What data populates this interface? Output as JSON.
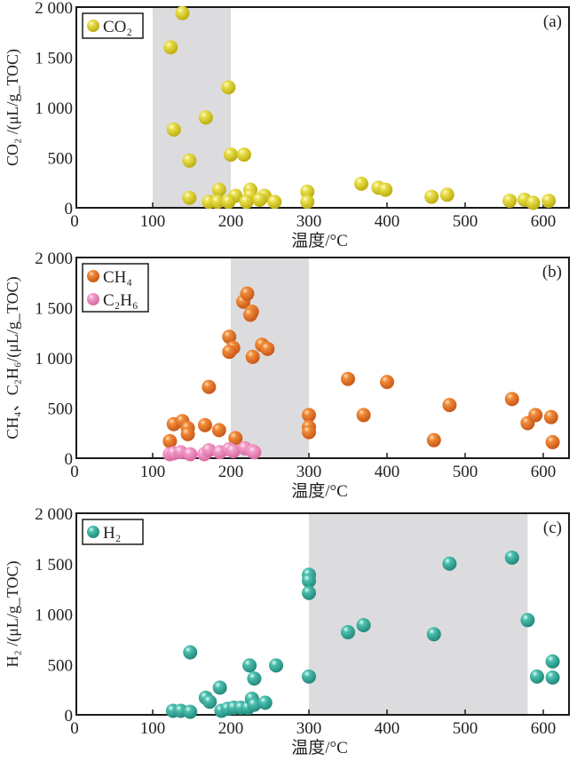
{
  "chart_data": [
    {
      "type": "scatter",
      "panel_label": "(a)",
      "xlabel": "温度/°C",
      "ylabel": "CO₂ /(μL/g_TOC)",
      "xlim": [
        0,
        640
      ],
      "ylim": [
        0,
        2000
      ],
      "xticks": [
        "0",
        "100",
        "200",
        "300",
        "400",
        "500",
        "600"
      ],
      "yticks": [
        "0",
        "500",
        "1 000",
        "1 500",
        "2 000"
      ],
      "shaded_range": [
        100,
        200
      ],
      "legend_position": "top-left",
      "series": [
        {
          "name": "CO₂",
          "color": "#d8cc2e",
          "points": [
            [
              138,
              1940
            ],
            [
              123,
              1600
            ],
            [
              197,
              1200
            ],
            [
              168,
              900
            ],
            [
              127,
              780
            ],
            [
              147,
              470
            ],
            [
              200,
              530
            ],
            [
              217,
              530
            ],
            [
              147,
              100
            ],
            [
              185,
              180
            ],
            [
              206,
              120
            ],
            [
              225,
              180
            ],
            [
              225,
              120
            ],
            [
              243,
              120
            ],
            [
              172,
              60
            ],
            [
              183,
              60
            ],
            [
              197,
              60
            ],
            [
              220,
              60
            ],
            [
              237,
              80
            ],
            [
              256,
              60
            ],
            [
              298,
              160
            ],
            [
              298,
              60
            ],
            [
              367,
              240
            ],
            [
              389,
              200
            ],
            [
              398,
              180
            ],
            [
              457,
              110
            ],
            [
              477,
              130
            ],
            [
              557,
              70
            ],
            [
              576,
              80
            ],
            [
              587,
              50
            ],
            [
              607,
              70
            ]
          ]
        }
      ]
    },
    {
      "type": "scatter",
      "panel_label": "(b)",
      "xlabel": "温度/°C",
      "ylabel": "CH₄、C₂H₆/(μL/g_TOC)",
      "xlim": [
        0,
        640
      ],
      "ylim": [
        0,
        2000
      ],
      "xticks": [
        "0",
        "100",
        "200",
        "300",
        "400",
        "500",
        "600"
      ],
      "yticks": [
        "0",
        "500",
        "1 000",
        "1 500",
        "2 000"
      ],
      "shaded_range": [
        200,
        300
      ],
      "legend_position": "top-left",
      "series": [
        {
          "name": "CH₄",
          "color": "#ee7a2a",
          "points": [
            [
              122,
              170
            ],
            [
              127,
              340
            ],
            [
              138,
              370
            ],
            [
              145,
              300
            ],
            [
              145,
              240
            ],
            [
              167,
              330
            ],
            [
              172,
              710
            ],
            [
              185,
              280
            ],
            [
              206,
              200
            ],
            [
              198,
              1210
            ],
            [
              203,
              1100
            ],
            [
              198,
              1060
            ],
            [
              216,
              1560
            ],
            [
              221,
              1640
            ],
            [
              227,
              1460
            ],
            [
              225,
              1430
            ],
            [
              228,
              1010
            ],
            [
              240,
              1130
            ],
            [
              247,
              1090
            ],
            [
              300,
              430
            ],
            [
              300,
              310
            ],
            [
              300,
              260
            ],
            [
              350,
              790
            ],
            [
              370,
              430
            ],
            [
              400,
              760
            ],
            [
              460,
              180
            ],
            [
              480,
              530
            ],
            [
              560,
              590
            ],
            [
              580,
              350
            ],
            [
              590,
              430
            ],
            [
              610,
              410
            ],
            [
              612,
              160
            ]
          ]
        },
        {
          "name": "C₂H₆",
          "color": "#ef8fc0",
          "points": [
            [
              122,
              40
            ],
            [
              127,
              50
            ],
            [
              136,
              60
            ],
            [
              148,
              40
            ],
            [
              166,
              40
            ],
            [
              172,
              80
            ],
            [
              186,
              60
            ],
            [
              198,
              90
            ],
            [
              203,
              70
            ],
            [
              218,
              100
            ],
            [
              228,
              70
            ],
            [
              230,
              60
            ]
          ]
        }
      ]
    },
    {
      "type": "scatter",
      "panel_label": "(c)",
      "xlabel": "温度/°C",
      "ylabel": "H₂ /(μL/g_TOC)",
      "xlim": [
        0,
        640
      ],
      "ylim": [
        0,
        2000
      ],
      "xticks": [
        "0",
        "100",
        "200",
        "300",
        "400",
        "500",
        "600"
      ],
      "yticks": [
        "0",
        "500",
        "1 000",
        "1 500",
        "2 000"
      ],
      "shaded_range": [
        300,
        580
      ],
      "legend_position": "top-left",
      "series": [
        {
          "name": "H₂",
          "color": "#3fb4a4",
          "points": [
            [
              126,
              40
            ],
            [
              136,
              40
            ],
            [
              148,
              30
            ],
            [
              148,
              620
            ],
            [
              168,
              170
            ],
            [
              173,
              130
            ],
            [
              186,
              270
            ],
            [
              188,
              40
            ],
            [
              196,
              60
            ],
            [
              204,
              70
            ],
            [
              213,
              70
            ],
            [
              222,
              70
            ],
            [
              224,
              490
            ],
            [
              227,
              160
            ],
            [
              230,
              360
            ],
            [
              230,
              100
            ],
            [
              244,
              120
            ],
            [
              258,
              490
            ],
            [
              300,
              1390
            ],
            [
              300,
              1330
            ],
            [
              300,
              1210
            ],
            [
              300,
              380
            ],
            [
              350,
              820
            ],
            [
              370,
              890
            ],
            [
              460,
              800
            ],
            [
              480,
              1500
            ],
            [
              560,
              1560
            ],
            [
              580,
              940
            ],
            [
              592,
              380
            ],
            [
              612,
              530
            ],
            [
              612,
              370
            ]
          ]
        }
      ]
    }
  ]
}
